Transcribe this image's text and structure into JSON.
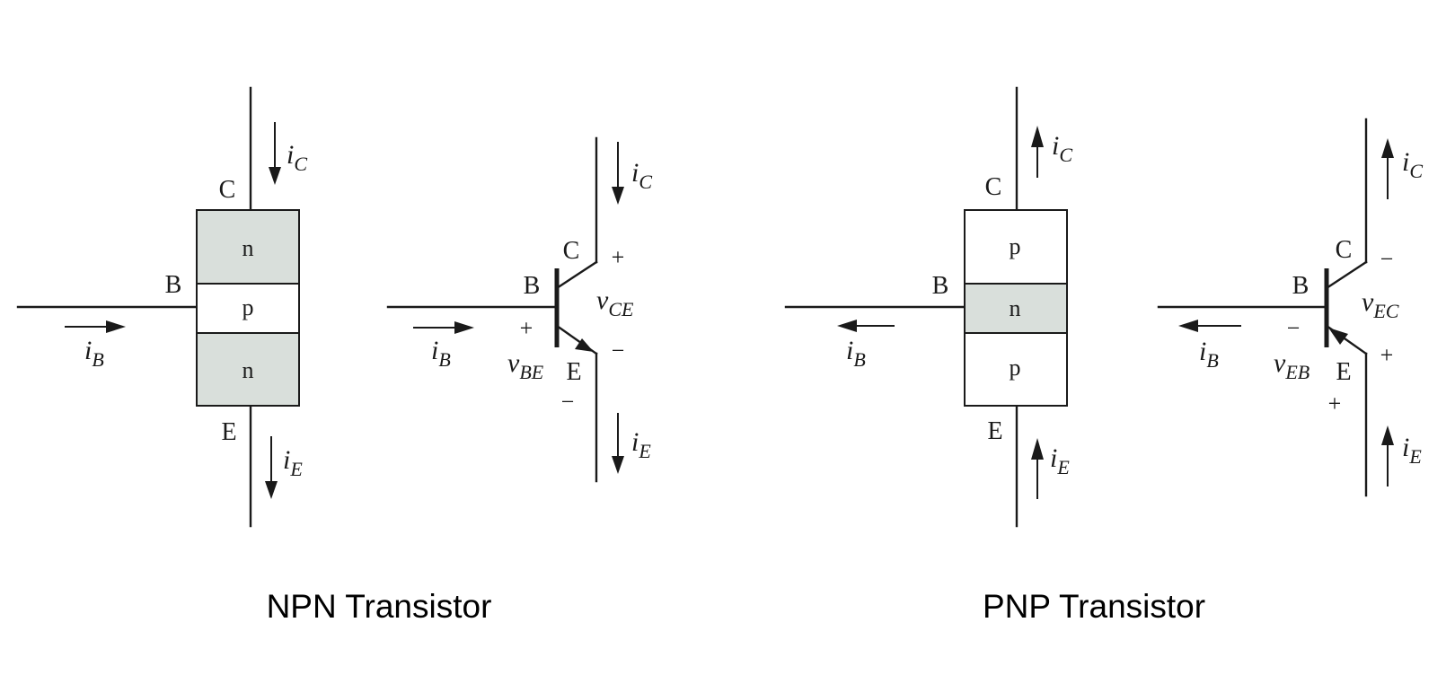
{
  "colors": {
    "ink": "#1a1a1a",
    "doped_fill": "#d9dfdb",
    "plain_fill": "#ffffff"
  },
  "npn": {
    "caption": "NPN Transistor",
    "block": {
      "terminal_c": "C",
      "terminal_b": "B",
      "terminal_e": "E",
      "layers": [
        "n",
        "p",
        "n"
      ],
      "currents": {
        "ic": {
          "i": "i",
          "sub": "C"
        },
        "ib": {
          "i": "i",
          "sub": "B"
        },
        "ie": {
          "i": "i",
          "sub": "E"
        }
      }
    },
    "symbol": {
      "terminal_c": "C",
      "terminal_b": "B",
      "terminal_e": "E",
      "currents": {
        "ic": {
          "i": "i",
          "sub": "C"
        },
        "ib": {
          "i": "i",
          "sub": "B"
        },
        "ie": {
          "i": "i",
          "sub": "E"
        }
      },
      "v_ce": {
        "v": "v",
        "sub": "CE",
        "plus": "+",
        "minus": "−"
      },
      "v_be": {
        "v": "v",
        "sub": "BE",
        "plus": "+",
        "minus": "−"
      }
    }
  },
  "pnp": {
    "caption": "PNP Transistor",
    "block": {
      "terminal_c": "C",
      "terminal_b": "B",
      "terminal_e": "E",
      "layers": [
        "p",
        "n",
        "p"
      ],
      "currents": {
        "ic": {
          "i": "i",
          "sub": "C"
        },
        "ib": {
          "i": "i",
          "sub": "B"
        },
        "ie": {
          "i": "i",
          "sub": "E"
        }
      }
    },
    "symbol": {
      "terminal_c": "C",
      "terminal_b": "B",
      "terminal_e": "E",
      "currents": {
        "ic": {
          "i": "i",
          "sub": "C"
        },
        "ib": {
          "i": "i",
          "sub": "B"
        },
        "ie": {
          "i": "i",
          "sub": "E"
        }
      },
      "v_ec": {
        "v": "v",
        "sub": "EC",
        "plus": "+",
        "minus": "−"
      },
      "v_eb": {
        "v": "v",
        "sub": "EB",
        "plus": "+",
        "minus": "−"
      }
    }
  }
}
